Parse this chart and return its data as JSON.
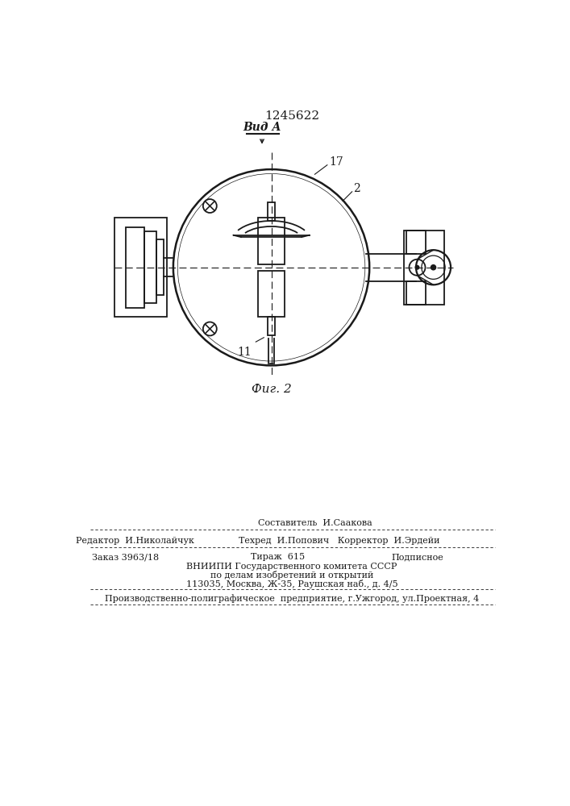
{
  "patent_number": "1245622",
  "title_view": "Вид А",
  "fig_label": "Фиг. 2",
  "label_17": "17",
  "label_2": "2",
  "label_11": "11",
  "footer_comp": "Составитель  И.Саакова",
  "footer_editor": "Редактор  И.Николайчук",
  "footer_tech_corr": "Техред  И.Попович   Корректор  И.Эрдейи",
  "footer_order": "Заказ 3963/18",
  "footer_print": "Тираж  615",
  "footer_sub": "Подписное",
  "footer_org1": "ВНИИПИ Государственного комитета СССР",
  "footer_org2": "по делам изобретений и открытий",
  "footer_org3": "113035, Москва, Ж-35, Раушская наб., д. 4/5",
  "footer_prod": "Производственно-полиграфическое  предприятие, г.Ужгород, ул.Проектная, 4",
  "bg_color": "#ffffff",
  "line_color": "#1a1a1a",
  "lw": 1.3
}
